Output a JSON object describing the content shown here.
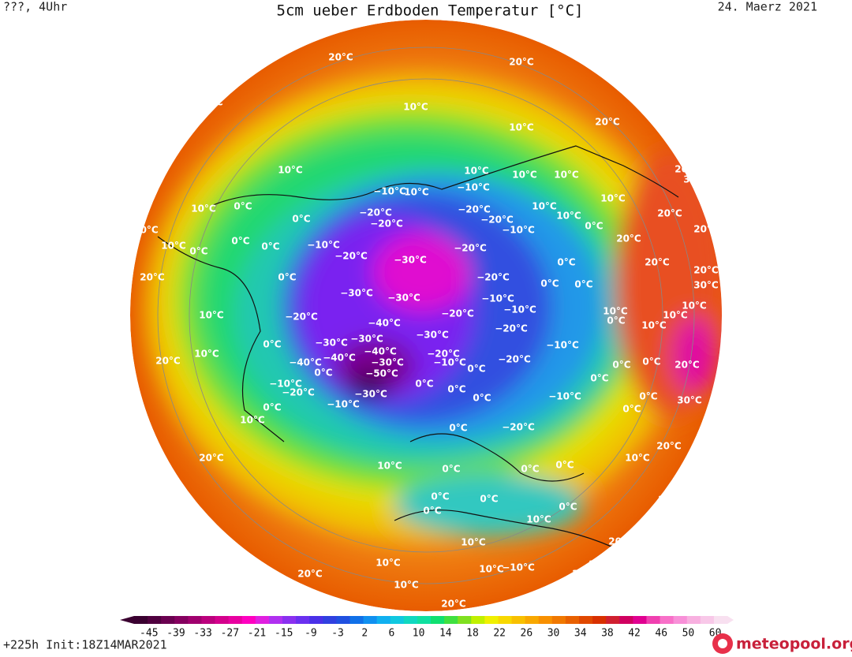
{
  "header": {
    "left": "???, 4Uhr",
    "title": "5cm ueber Erdboden Temperatur [°C]",
    "right": "24. Maerz 2021"
  },
  "footer": {
    "run": "+225h Init:18Z14MAR2021",
    "logo": "meteopool.org"
  },
  "colorbar": {
    "ticks": [
      -45,
      -39,
      -33,
      -27,
      -21,
      -15,
      -9,
      -3,
      2,
      6,
      10,
      14,
      18,
      22,
      26,
      30,
      34,
      38,
      42,
      46,
      50,
      60
    ],
    "colors": [
      "#3a0030",
      "#50003f",
      "#6a0050",
      "#85005f",
      "#a0006e",
      "#bb007d",
      "#d4008c",
      "#e800a0",
      "#ff00c0",
      "#e020e0",
      "#b030f0",
      "#8a30f0",
      "#6a30f0",
      "#4a30e8",
      "#3040e0",
      "#2050e0",
      "#1070e8",
      "#1090f0",
      "#10b0f0",
      "#10c8e0",
      "#10d8c0",
      "#10e0a0",
      "#10e070",
      "#40e040",
      "#80e020",
      "#c0f000",
      "#f0f000",
      "#f8d800",
      "#f8c000",
      "#f8a800",
      "#f89000",
      "#f07800",
      "#e86000",
      "#e04800",
      "#d83000",
      "#d02030",
      "#d00060",
      "#e00090",
      "#f040b0",
      "#f870c8",
      "#f890d8",
      "#f8b0e0",
      "#f8c8e8",
      "#f8e0f0"
    ]
  },
  "contour_labels": [
    "20°C",
    "20°C",
    "20°C",
    "20°C",
    "20°C",
    "30°C",
    "20°C",
    "20°C",
    "20°C",
    "20°C",
    "20°C",
    "30°C",
    "10°C",
    "20°C",
    "30°C",
    "20°C",
    "10°C",
    "20°C",
    "20°C",
    "20°C",
    "20°C",
    "20°C",
    "20°C",
    "20°C",
    "20°C",
    "20°C",
    "10°C",
    "10°C",
    "10°C",
    "10°C",
    "10°C",
    "10°C",
    "10°C",
    "10°C",
    "10°C",
    "10°C",
    "10°C",
    "10°C",
    "10°C",
    "10°C",
    "10°C",
    "10°C",
    "10°C",
    "10°C",
    "10°C",
    "10°C",
    "10°C",
    "10°C",
    "10°C",
    "10°C",
    "10°C",
    "0°C",
    "0°C",
    "0°C",
    "0°C",
    "0°C",
    "0°C",
    "0°C",
    "0°C",
    "0°C",
    "0°C",
    "0°C",
    "0°C",
    "0°C",
    "0°C",
    "0°C",
    "0°C",
    "0°C",
    "0°C",
    "0°C",
    "0°C",
    "0°C",
    "0°C",
    "0°C",
    "0°C",
    "0°C",
    "0°C",
    "0°C",
    "0°C",
    "0°C",
    "0°C",
    "0°C",
    "−10°C",
    "−10°C",
    "−10°C",
    "−10°C",
    "−10°C",
    "−10°C",
    "−10°C",
    "−10°C",
    "−10°C",
    "−10°C",
    "−10°C",
    "−10°C",
    "−20°C",
    "−20°C",
    "−20°C",
    "−20°C",
    "−20°C",
    "−20°C",
    "−20°C",
    "−20°C",
    "−20°C",
    "−20°C",
    "−20°C",
    "−20°C",
    "−20°C",
    "−20°C",
    "−30°C",
    "−30°C",
    "−30°C",
    "−30°C",
    "−30°C",
    "−30°C",
    "−30°C",
    "−40°C",
    "−40°C",
    "−40°C",
    "−40°C",
    "−50°C",
    "−30°C"
  ]
}
